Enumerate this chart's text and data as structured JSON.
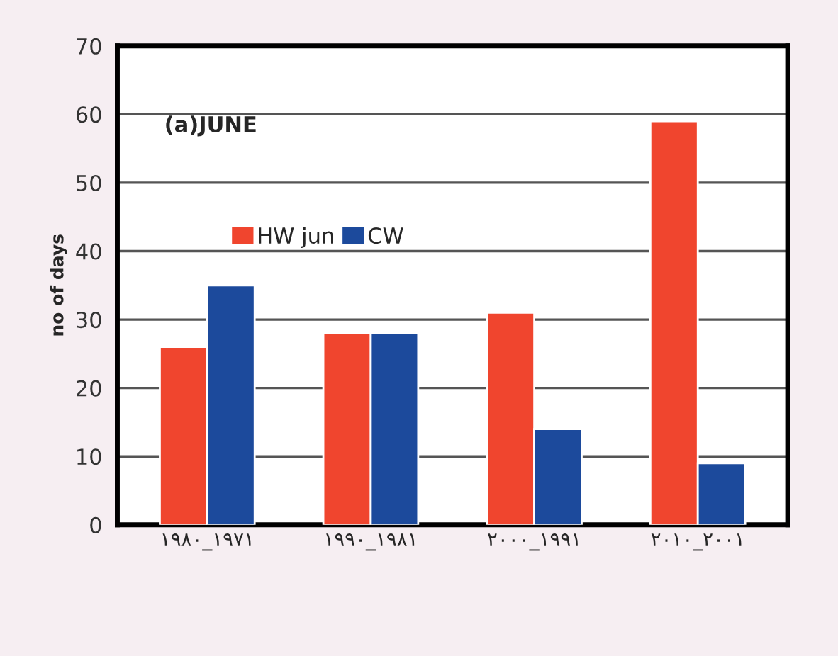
{
  "chart_data": {
    "type": "bar",
    "categories": [
      "١٩٨٠_١٩٧١",
      "١٩٩٠_١٩٨١",
      "٢٠٠٠_١٩٩١",
      "٢٠١٠_٢٠٠١"
    ],
    "series": [
      {
        "name": "HW jun",
        "color": "#f0452e",
        "values": [
          26,
          28,
          31,
          59
        ]
      },
      {
        "name": "CW",
        "color": "#1c4a9c",
        "values": [
          35,
          28,
          14,
          9
        ]
      }
    ],
    "ylabel": "no of days",
    "annotations": [
      "(a)JUNE"
    ],
    "ylim": [
      0,
      70
    ],
    "yticks": [
      0,
      10,
      20,
      30,
      40,
      50,
      60,
      70
    ],
    "grid": "y",
    "legend": "center"
  }
}
